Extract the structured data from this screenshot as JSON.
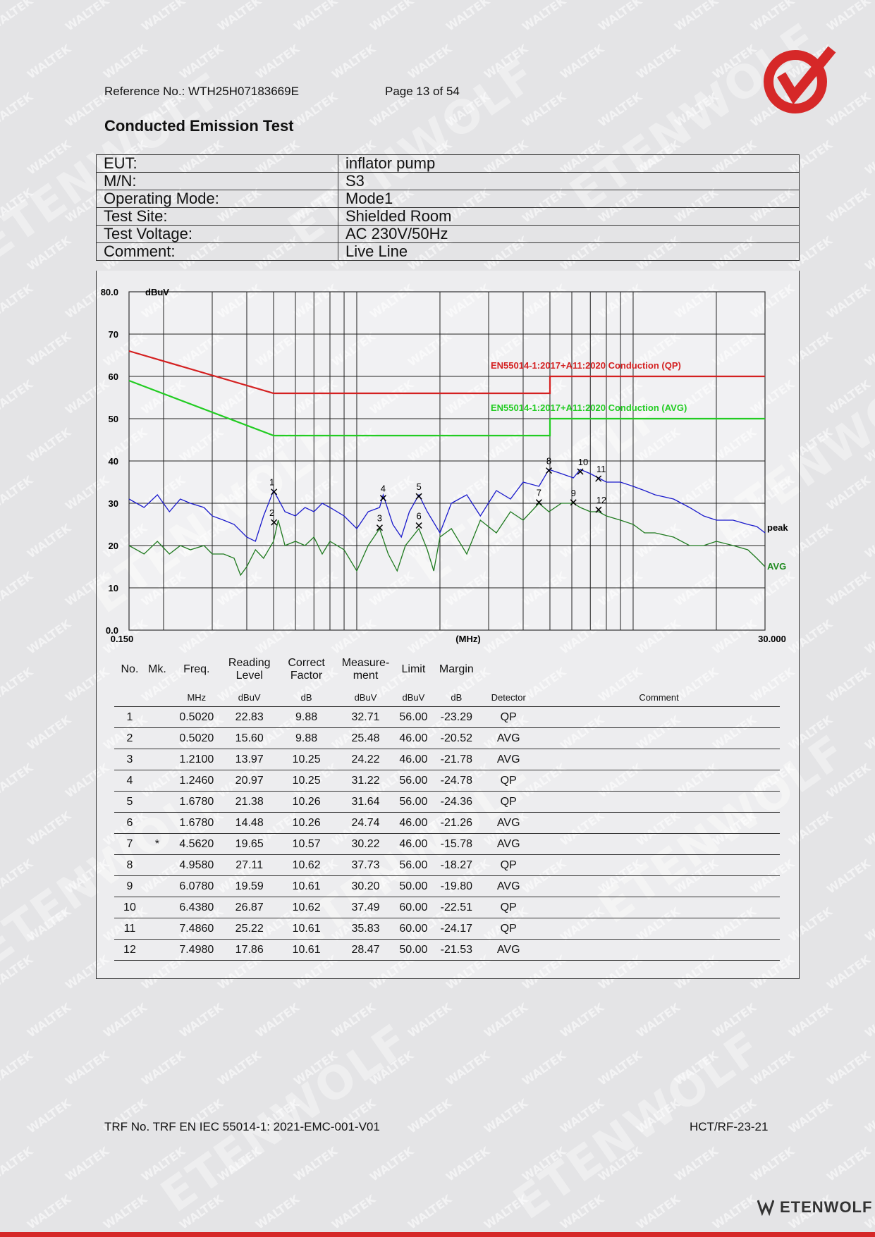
{
  "header": {
    "reference": "Reference No.: WTH25H07183669E",
    "page": "Page 13 of 54"
  },
  "title": "Conducted Emission Test",
  "info": [
    {
      "label": "EUT:",
      "value": "inflator pump"
    },
    {
      "label": "M/N:",
      "value": "S3"
    },
    {
      "label": "Operating Mode:",
      "value": "Mode1"
    },
    {
      "label": "Test Site:",
      "value": "Shielded Room"
    },
    {
      "label": "Test Voltage:",
      "value": "AC 230V/50Hz"
    },
    {
      "label": "Comment:",
      "value": "Live Line"
    }
  ],
  "chart_data": {
    "type": "line",
    "xlabel": "(MHz)",
    "ylabel": "dBuV",
    "x_scale": "log",
    "xlim": [
      0.15,
      30.0
    ],
    "ylim": [
      0,
      80
    ],
    "x_tick_labels": [
      "0.150",
      "30.000"
    ],
    "y_tick_labels": [
      "80.0",
      "70",
      "60",
      "50",
      "40",
      "30",
      "20",
      "10",
      "0.0"
    ],
    "limit_lines": [
      {
        "name": "EN55014-1:2017+A11:2020 Conduction (QP)",
        "color": "#d42020",
        "x": [
          0.15,
          0.5,
          5.0,
          5.0,
          30.0
        ],
        "y": [
          66,
          56,
          56,
          60,
          60
        ]
      },
      {
        "name": "EN55014-1:2017+A11:2020 Conduction (AVG)",
        "color": "#22cc22",
        "x": [
          0.15,
          0.5,
          5.0,
          5.0,
          30.0
        ],
        "y": [
          59,
          46,
          46,
          50,
          50
        ]
      }
    ],
    "series": [
      {
        "name": "peak",
        "color": "#1a1acc",
        "x": [
          0.15,
          0.17,
          0.19,
          0.21,
          0.23,
          0.25,
          0.28,
          0.3,
          0.33,
          0.36,
          0.4,
          0.43,
          0.46,
          0.5,
          0.52,
          0.55,
          0.6,
          0.65,
          0.7,
          0.75,
          0.8,
          0.9,
          1.0,
          1.1,
          1.21,
          1.246,
          1.35,
          1.45,
          1.55,
          1.678,
          1.8,
          2.0,
          2.2,
          2.5,
          2.8,
          3.2,
          3.6,
          4.0,
          4.562,
          4.958,
          5.5,
          6.078,
          6.438,
          7.0,
          7.486,
          8.0,
          9.0,
          10.0,
          11.0,
          12.0,
          14.0,
          16.0,
          18.0,
          20.0,
          23.0,
          26.0,
          28.0,
          30.0
        ],
        "y": [
          31,
          29,
          32,
          28,
          31,
          30,
          29,
          27,
          26,
          25,
          22,
          21,
          27,
          33,
          31,
          28,
          27,
          29,
          28,
          30,
          29,
          27,
          24,
          28,
          29,
          32,
          25,
          22,
          28,
          32,
          28,
          23,
          30,
          32,
          27,
          33,
          31,
          35,
          34,
          38,
          37,
          36,
          38,
          37,
          36,
          35,
          35,
          34,
          33,
          32,
          31,
          29,
          27,
          26,
          26,
          25,
          24.5,
          23
        ]
      },
      {
        "name": "AVG",
        "color": "#1f7a1f",
        "x": [
          0.15,
          0.17,
          0.19,
          0.21,
          0.23,
          0.25,
          0.28,
          0.3,
          0.33,
          0.36,
          0.38,
          0.4,
          0.43,
          0.46,
          0.5,
          0.52,
          0.55,
          0.6,
          0.65,
          0.7,
          0.75,
          0.8,
          0.9,
          1.0,
          1.1,
          1.21,
          1.3,
          1.4,
          1.5,
          1.678,
          1.8,
          1.9,
          2.0,
          2.2,
          2.5,
          2.8,
          3.2,
          3.6,
          4.0,
          4.562,
          4.958,
          5.5,
          6.078,
          6.438,
          7.0,
          7.498,
          8.0,
          9.0,
          10.0,
          11.0,
          12.0,
          14.0,
          16.0,
          18.0,
          20.0,
          23.0,
          26.0,
          28.0,
          30.0
        ],
        "y": [
          20,
          18,
          21,
          18,
          20,
          19,
          20,
          18,
          18,
          17,
          13,
          15,
          19,
          17,
          21,
          26,
          20,
          21,
          20,
          22,
          18,
          21,
          19,
          14,
          20,
          24,
          18,
          14,
          20,
          24,
          19,
          14,
          22,
          24,
          18,
          26,
          23,
          28,
          26,
          30,
          28,
          30,
          30,
          29,
          28,
          28,
          27,
          26,
          25,
          23,
          23,
          22,
          20,
          20,
          21,
          20,
          19,
          17,
          15
        ]
      }
    ],
    "series_labels": [
      "peak",
      "AVG"
    ],
    "markers": [
      {
        "no": "1",
        "x": 0.502,
        "y": 32.71
      },
      {
        "no": "2",
        "x": 0.502,
        "y": 25.48
      },
      {
        "no": "3",
        "x": 1.21,
        "y": 24.22
      },
      {
        "no": "4",
        "x": 1.246,
        "y": 31.22
      },
      {
        "no": "5",
        "x": 1.678,
        "y": 31.64
      },
      {
        "no": "6",
        "x": 1.678,
        "y": 24.74
      },
      {
        "no": "7",
        "x": 4.562,
        "y": 30.22
      },
      {
        "no": "8",
        "x": 4.958,
        "y": 37.73
      },
      {
        "no": "9",
        "x": 6.078,
        "y": 30.2
      },
      {
        "no": "10",
        "x": 6.438,
        "y": 37.49
      },
      {
        "no": "11",
        "x": 7.486,
        "y": 35.83
      },
      {
        "no": "12",
        "x": 7.498,
        "y": 28.47
      }
    ]
  },
  "table": {
    "headers": [
      "No.",
      "Mk.",
      "Freq.",
      "Reading Level",
      "Correct Factor",
      "Measure- ment",
      "Limit",
      "Margin",
      "",
      ""
    ],
    "header_line1": [
      "",
      "",
      "",
      "Reading",
      "Correct",
      "Measure-",
      "",
      "",
      "",
      ""
    ],
    "header_line2": [
      "No.",
      "Mk.",
      "Freq.",
      "Level",
      "Factor",
      "ment",
      "Limit",
      "Margin",
      "",
      ""
    ],
    "units": [
      "",
      "",
      "MHz",
      "dBuV",
      "dB",
      "dBuV",
      "dBuV",
      "dB",
      "Detector",
      "Comment"
    ],
    "rows": [
      [
        "1",
        "",
        "0.5020",
        "22.83",
        "9.88",
        "32.71",
        "56.00",
        "-23.29",
        "QP",
        ""
      ],
      [
        "2",
        "",
        "0.5020",
        "15.60",
        "9.88",
        "25.48",
        "46.00",
        "-20.52",
        "AVG",
        ""
      ],
      [
        "3",
        "",
        "1.2100",
        "13.97",
        "10.25",
        "24.22",
        "46.00",
        "-21.78",
        "AVG",
        ""
      ],
      [
        "4",
        "",
        "1.2460",
        "20.97",
        "10.25",
        "31.22",
        "56.00",
        "-24.78",
        "QP",
        ""
      ],
      [
        "5",
        "",
        "1.6780",
        "21.38",
        "10.26",
        "31.64",
        "56.00",
        "-24.36",
        "QP",
        ""
      ],
      [
        "6",
        "",
        "1.6780",
        "14.48",
        "10.26",
        "24.74",
        "46.00",
        "-21.26",
        "AVG",
        ""
      ],
      [
        "7",
        "*",
        "4.5620",
        "19.65",
        "10.57",
        "30.22",
        "46.00",
        "-15.78",
        "AVG",
        ""
      ],
      [
        "8",
        "",
        "4.9580",
        "27.11",
        "10.62",
        "37.73",
        "56.00",
        "-18.27",
        "QP",
        ""
      ],
      [
        "9",
        "",
        "6.0780",
        "19.59",
        "10.61",
        "30.20",
        "50.00",
        "-19.80",
        "AVG",
        ""
      ],
      [
        "10",
        "",
        "6.4380",
        "26.87",
        "10.62",
        "37.49",
        "60.00",
        "-22.51",
        "QP",
        ""
      ],
      [
        "11",
        "",
        "7.4860",
        "25.22",
        "10.61",
        "35.83",
        "60.00",
        "-24.17",
        "QP",
        ""
      ],
      [
        "12",
        "",
        "7.4980",
        "17.86",
        "10.61",
        "28.47",
        "50.00",
        "-21.53",
        "AVG",
        ""
      ]
    ]
  },
  "footer": {
    "trf": "TRF No. TRF EN IEC 55014-1: 2021-EMC-001-V01",
    "code": "HCT/RF-23-21",
    "brand": "ETENWOLF"
  },
  "watermark": {
    "small": "WALTEK",
    "big": "ETENWOLF"
  },
  "colors": {
    "accent": "#d62828",
    "qp_limit": "#d42020",
    "avg_limit": "#22cc22",
    "peak": "#1a1acc",
    "avg": "#1f7a1f"
  }
}
